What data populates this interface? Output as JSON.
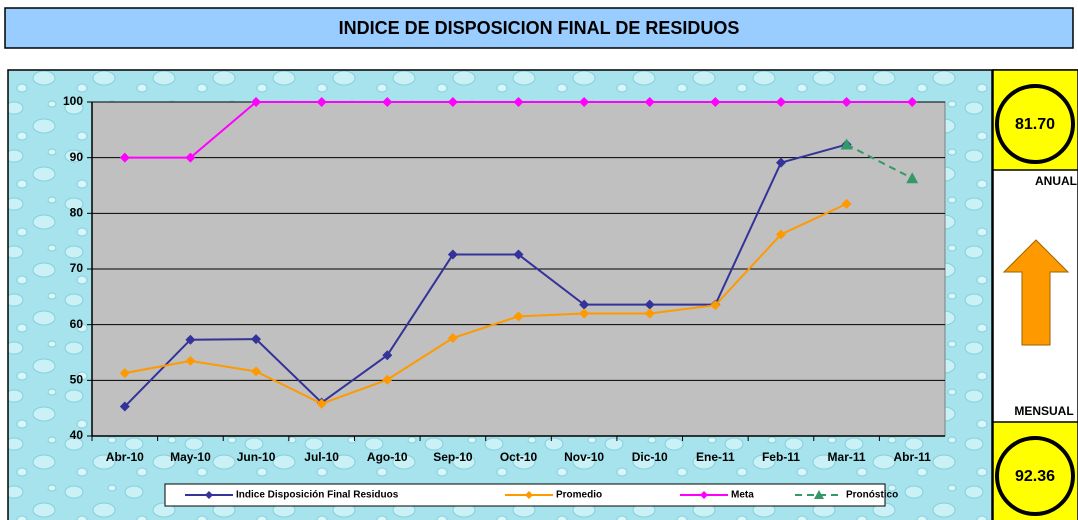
{
  "chart_data": {
    "type": "line",
    "title": "INDICE DE DISPOSICION FINAL DE RESIDUOS",
    "categories": [
      "Abr-10",
      "May-10",
      "Jun-10",
      "Jul-10",
      "Ago-10",
      "Sep-10",
      "Oct-10",
      "Nov-10",
      "Dic-10",
      "Ene-11",
      "Feb-11",
      "Mar-11",
      "Abr-11"
    ],
    "series": [
      {
        "name": "Indice Disposición Final Residuos",
        "color": "#333399",
        "marker": "diamond",
        "dashed": false,
        "values": [
          45.3,
          57.3,
          57.4,
          46,
          54.5,
          72.6,
          72.6,
          63.6,
          63.6,
          63.6,
          89.1,
          92.36,
          null
        ]
      },
      {
        "name": "Promedio",
        "color": "#ff9900",
        "marker": "diamond",
        "dashed": false,
        "values": [
          51.3,
          53.5,
          51.6,
          45.8,
          50.1,
          57.6,
          61.5,
          62,
          62,
          63.5,
          76.2,
          81.7,
          null
        ]
      },
      {
        "name": "Meta",
        "color": "#ff00ff",
        "marker": "diamond",
        "dashed": false,
        "values": [
          90,
          90,
          100,
          100,
          100,
          100,
          100,
          100,
          100,
          100,
          100,
          100,
          100
        ]
      },
      {
        "name": "Pronóstico",
        "color": "#339966",
        "marker": "triangle",
        "dashed": true,
        "values": [
          null,
          null,
          null,
          null,
          null,
          null,
          null,
          null,
          null,
          null,
          null,
          92.36,
          86.3
        ]
      }
    ],
    "ylim": [
      40,
      100
    ],
    "yticks": [
      40,
      50,
      60,
      70,
      80,
      90,
      100
    ],
    "grid": true,
    "legend": "bottom"
  },
  "panel": {
    "anual_value": "81.70",
    "anual_label": "ANUAL",
    "mensual_label": "MENSUAL",
    "mensual_value": "92.36",
    "trend": "up"
  }
}
